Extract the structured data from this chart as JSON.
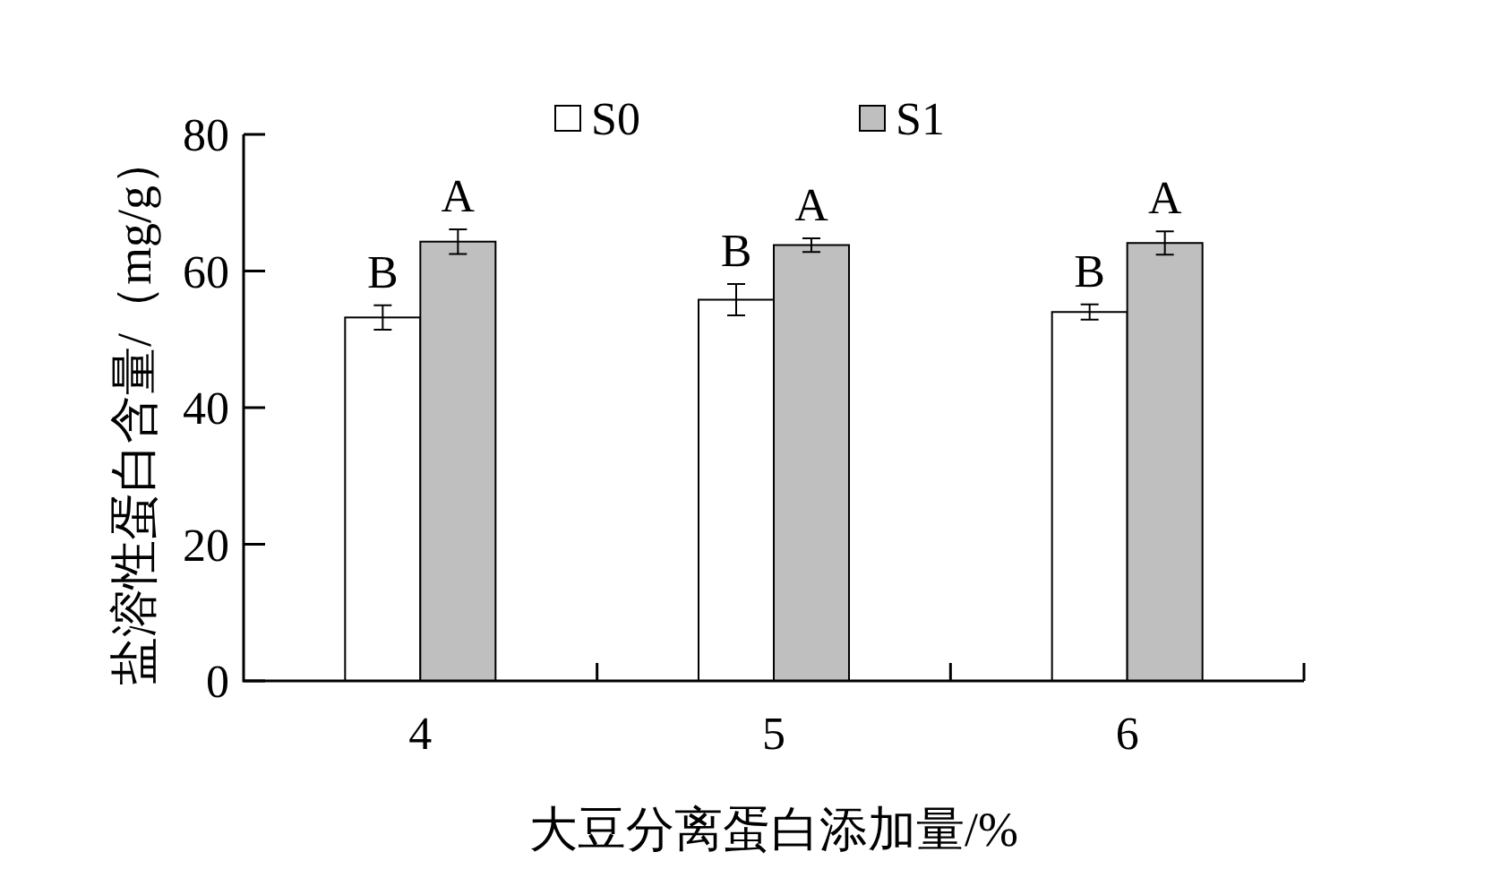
{
  "chart_data": {
    "type": "bar",
    "xlabel": "大豆分离蛋白添加量/%",
    "ylabel": "盐溶性蛋白含量/（mg/g）",
    "categories": [
      "4",
      "5",
      "6"
    ],
    "series": [
      {
        "name": "S0",
        "color": "#ffffff",
        "values": [
          53.2,
          55.8,
          54.0
        ],
        "errors": [
          1.8,
          2.3,
          1.1
        ]
      },
      {
        "name": "S1",
        "color": "#c0bfc0",
        "values": [
          64.3,
          63.8,
          64.1
        ],
        "errors": [
          1.8,
          1.0,
          1.7
        ]
      }
    ],
    "ylim": [
      0,
      80
    ],
    "yticks": [
      0,
      20,
      40,
      60,
      80
    ],
    "legend": "top",
    "annotations": [
      {
        "text": "B",
        "x": "4",
        "y": 53.2
      },
      {
        "text": "A",
        "x": "4",
        "y": 64.3
      },
      {
        "text": "B",
        "x": "5",
        "y": 55.8
      },
      {
        "text": "A",
        "x": "5",
        "y": 63.8
      },
      {
        "text": "B",
        "x": "6",
        "y": 54.0
      },
      {
        "text": "A",
        "x": "6",
        "y": 64.1
      }
    ]
  }
}
